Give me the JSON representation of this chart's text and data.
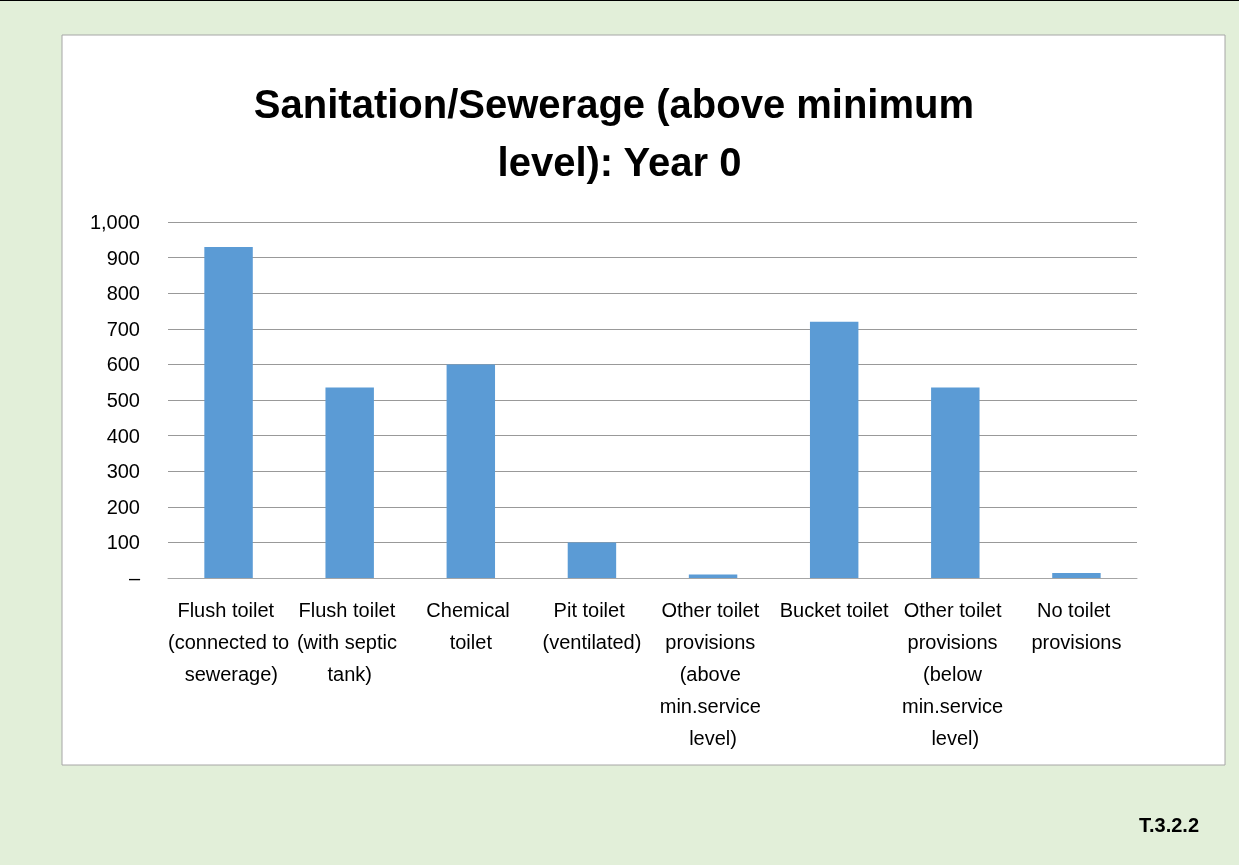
{
  "chart_data": {
    "type": "bar",
    "title": "Sanitation/Sewerage (above minimum level): Year 0",
    "categories": [
      "Flush toilet (connected to sewerage)",
      "Flush toilet (with septic tank)",
      "Chemical toilet",
      "Pit toilet (ventilated)",
      "Other toilet provisions (above min.service level)",
      "Bucket toilet",
      "Other toilet provisions (below min.service level)",
      "No toilet provisions"
    ],
    "values": [
      930,
      535,
      600,
      100,
      10,
      720,
      535,
      14
    ],
    "color": "#5b9bd5",
    "ylim": [
      0,
      1000
    ],
    "yticks": [
      {
        "value": 0,
        "label": "–"
      },
      100,
      200,
      300,
      400,
      500,
      600,
      700,
      800,
      900,
      {
        "value": 1000,
        "label": "1,000"
      }
    ],
    "grid": "y",
    "annotations": [
      "T.3.2.2"
    ]
  }
}
